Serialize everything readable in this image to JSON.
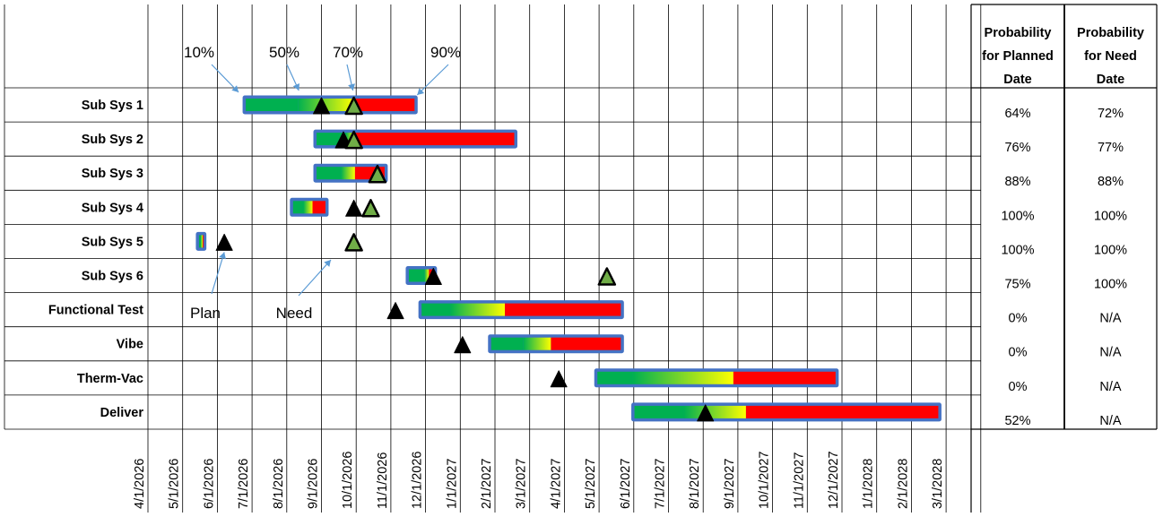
{
  "chart_data": {
    "type": "gantt",
    "x_ticks": [
      "4/1/2026",
      "5/1/2026",
      "6/1/2026",
      "7/1/2026",
      "8/1/2026",
      "9/1/2026",
      "10/1/2026",
      "11/1/2026",
      "12/1/2026",
      "1/1/2027",
      "2/1/2027",
      "3/1/2027",
      "4/1/2027",
      "5/1/2027",
      "6/1/2027",
      "7/1/2027",
      "8/1/2027",
      "9/1/2027",
      "10/1/2027",
      "11/1/2027",
      "12/1/2027",
      "1/1/2028",
      "2/1/2028",
      "3/1/2028"
    ],
    "percentile_labels": [
      "10%",
      "50%",
      "70%",
      "90%"
    ],
    "markers": {
      "plan_label": "Plan",
      "need_label": "Need"
    },
    "table_headers": [
      "Probability for Planned Date",
      "Probability for Need Date"
    ],
    "table_header_lines": [
      [
        "Probability",
        "for Planned",
        "Date"
      ],
      [
        "Probability",
        "for Need",
        "Date"
      ]
    ],
    "colors": {
      "green": "#00b050",
      "red": "#ff0000",
      "yellow": "#ffff00",
      "border": "#4472c4",
      "plan_marker": "#000000",
      "need_marker": "#70ad47",
      "grid": "#000000"
    },
    "rows": [
      {
        "name": "Sub Sys 1",
        "p10": "2026-06-24",
        "p50": "2026-08-11",
        "p70": "2026-09-29",
        "p90": "2026-11-23",
        "plan": "2026-09-01",
        "need": "2026-09-29",
        "prob_planned": "64%",
        "prob_need": "72%"
      },
      {
        "name": "Sub Sys 2",
        "p10": "2026-08-26",
        "p50": "2026-09-22",
        "p70": "2026-09-30",
        "p90": "2027-02-18",
        "plan": "2026-09-20",
        "need": "2026-09-29",
        "prob_planned": "76%",
        "prob_need": "77%"
      },
      {
        "name": "Sub Sys 3",
        "p10": "2026-08-26",
        "p50": "2026-09-18",
        "p70": "2026-09-30",
        "p90": "2026-10-28",
        "plan": "",
        "need": "2026-10-20",
        "prob_planned": "88%",
        "prob_need": "88%"
      },
      {
        "name": "Sub Sys 4",
        "p10": "2026-08-05",
        "p50": "2026-08-16",
        "p70": "2026-08-24",
        "p90": "2026-09-06",
        "plan": "2026-09-29",
        "need": "2026-10-14",
        "prob_planned": "100%",
        "prob_need": "100%"
      },
      {
        "name": "Sub Sys 5",
        "p10": "2026-05-14",
        "p50": "2026-05-17",
        "p70": "2026-05-19",
        "p90": "2026-05-21",
        "plan": "2026-06-07",
        "need": "2026-09-29",
        "prob_planned": "100%",
        "prob_need": "100%"
      },
      {
        "name": "Sub Sys 6",
        "p10": "2026-11-15",
        "p50": "2026-11-30",
        "p70": "2026-12-04",
        "p90": "2026-12-10",
        "plan": "2026-12-08",
        "need": "2027-05-08",
        "prob_planned": "75%",
        "prob_need": "100%"
      },
      {
        "name": "Functional Test",
        "p10": "2026-11-26",
        "p50": "2026-12-23",
        "p70": "2027-02-09",
        "p90": "2027-05-22",
        "plan": "2026-11-05",
        "need": "",
        "prob_planned": "0%",
        "prob_need": "N/A"
      },
      {
        "name": "Vibe",
        "p10": "2027-01-27",
        "p50": "2027-02-24",
        "p70": "2027-03-20",
        "p90": "2027-05-22",
        "plan": "2027-01-03",
        "need": "",
        "prob_planned": "0%",
        "prob_need": "N/A"
      },
      {
        "name": "Therm-Vac",
        "p10": "2027-04-28",
        "p50": "2027-05-31",
        "p70": "2027-08-28",
        "p90": "2027-11-27",
        "plan": "2027-03-27",
        "need": "",
        "prob_planned": "0%",
        "prob_need": "N/A"
      },
      {
        "name": "Deliver",
        "p10": "2027-05-31",
        "p50": "2027-07-15",
        "p70": "2027-09-08",
        "p90": "2028-02-25",
        "plan": "2027-08-03",
        "need": "",
        "prob_planned": "52%",
        "prob_need": "N/A"
      }
    ]
  }
}
